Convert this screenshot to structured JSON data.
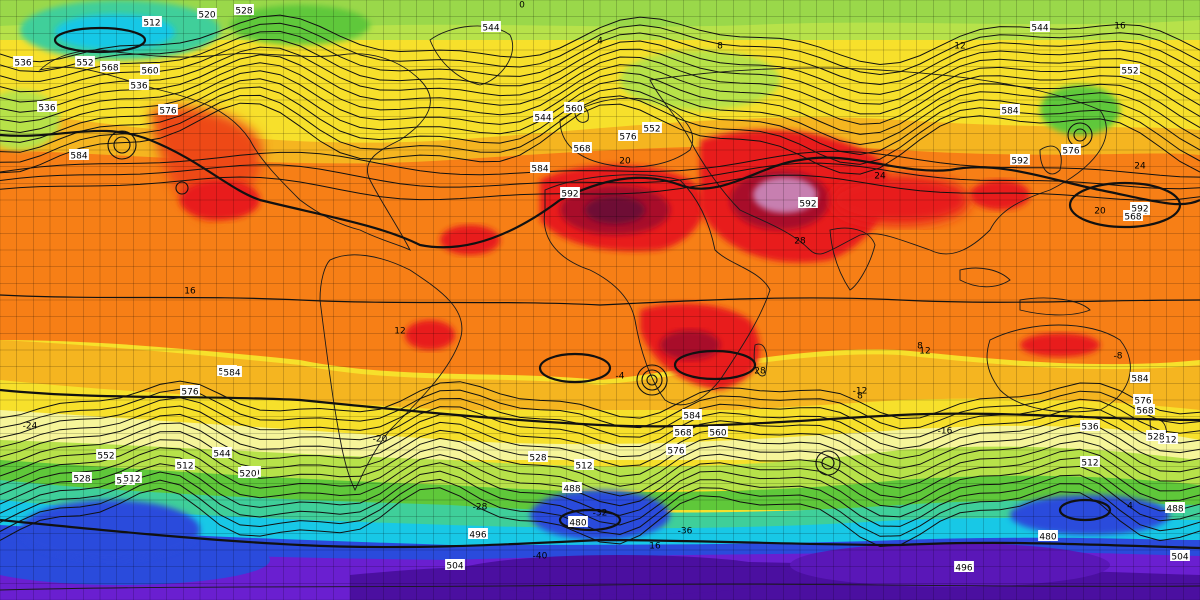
{
  "map": {
    "kind": "global 500 hPa geopotential height with 850 hPa temperature shading",
    "projection": "equirectangular",
    "graticule_step_deg": 5,
    "colors": {
      "deep_purple": "#4b0fa0",
      "violet": "#6a1fd0",
      "blue": "#2a4bdc",
      "cyan": "#18c8e6",
      "teal": "#3fcf9a",
      "green": "#5fc83a",
      "lime": "#b7e24a",
      "pale_yellow": "#f6f59a",
      "yellow": "#f7e02b",
      "gold": "#f5b520",
      "orange": "#f77f16",
      "red_orange": "#ee4a12",
      "red": "#e81c1c",
      "dark_red": "#a8102a",
      "maroon": "#6e0a35",
      "pink_mauve": "#c77fb0",
      "contour": "#111111",
      "coast": "#1a1a1a"
    },
    "height_labels": [
      {
        "text": "512",
        "role": "height-label"
      },
      {
        "text": "520",
        "role": "height-label"
      },
      {
        "text": "528",
        "role": "height-label"
      },
      {
        "text": "544",
        "role": "height-label"
      },
      {
        "text": "552",
        "role": "height-label"
      },
      {
        "text": "560",
        "role": "height-label"
      },
      {
        "text": "536",
        "role": "height-label"
      },
      {
        "text": "568",
        "role": "height-label"
      },
      {
        "text": "576",
        "role": "height-label"
      },
      {
        "text": "584",
        "role": "height-label"
      },
      {
        "text": "592",
        "role": "height-label"
      },
      {
        "text": "544",
        "role": "height-label"
      },
      {
        "text": "552",
        "role": "height-label"
      },
      {
        "text": "560",
        "role": "height-label"
      },
      {
        "text": "568",
        "role": "height-label"
      },
      {
        "text": "576",
        "role": "height-label"
      },
      {
        "text": "584",
        "role": "height-label"
      },
      {
        "text": "592",
        "role": "height-label"
      },
      {
        "text": "544",
        "role": "height-label"
      },
      {
        "text": "584",
        "role": "height-label"
      },
      {
        "text": "568",
        "role": "height-label"
      },
      {
        "text": "576",
        "role": "height-label"
      },
      {
        "text": "560",
        "role": "height-label"
      },
      {
        "text": "552",
        "role": "height-label"
      },
      {
        "text": "536",
        "role": "height-label"
      },
      {
        "text": "512",
        "role": "height-label"
      },
      {
        "text": "528",
        "role": "height-label"
      },
      {
        "text": "520",
        "role": "height-label"
      },
      {
        "text": "528",
        "role": "height-label"
      },
      {
        "text": "512",
        "role": "height-label"
      },
      {
        "text": "536",
        "role": "height-label"
      },
      {
        "text": "552",
        "role": "height-label"
      },
      {
        "text": "544",
        "role": "height-label"
      },
      {
        "text": "520",
        "role": "height-label"
      },
      {
        "text": "488",
        "role": "height-label"
      },
      {
        "text": "480",
        "role": "height-label"
      },
      {
        "text": "496",
        "role": "height-label"
      },
      {
        "text": "504",
        "role": "height-label"
      },
      {
        "text": "512",
        "role": "height-label"
      },
      {
        "text": "568",
        "role": "height-label"
      },
      {
        "text": "560",
        "role": "height-label"
      },
      {
        "text": "576",
        "role": "height-label"
      },
      {
        "text": "544",
        "role": "height-label"
      },
      {
        "text": "584",
        "role": "height-label"
      },
      {
        "text": "592",
        "role": "height-label"
      },
      {
        "text": "528",
        "role": "height-label"
      },
      {
        "text": "512",
        "role": "height-label"
      },
      {
        "text": "496",
        "role": "height-label"
      },
      {
        "text": "504",
        "role": "height-label"
      },
      {
        "text": "488",
        "role": "height-label"
      },
      {
        "text": "512",
        "role": "height-label"
      },
      {
        "text": "536",
        "role": "height-label"
      },
      {
        "text": "528",
        "role": "height-label"
      },
      {
        "text": "480",
        "role": "height-label"
      },
      {
        "text": "576",
        "role": "height-label"
      },
      {
        "text": "568",
        "role": "height-label"
      },
      {
        "text": "584",
        "role": "height-label"
      },
      {
        "text": "592",
        "role": "height-label"
      },
      {
        "text": "584",
        "role": "height-label"
      },
      {
        "text": "576",
        "role": "height-label"
      }
    ],
    "temp_labels": [
      "0",
      "4",
      "8",
      "12",
      "16",
      "20",
      "24",
      "28",
      "16",
      "12",
      "8",
      "-4",
      "-8",
      "-12",
      "-16",
      "-20",
      "-24",
      "-28",
      "-32",
      "-36",
      "-40",
      "16",
      "20",
      "24",
      "28",
      "12",
      "8",
      "4"
    ]
  }
}
